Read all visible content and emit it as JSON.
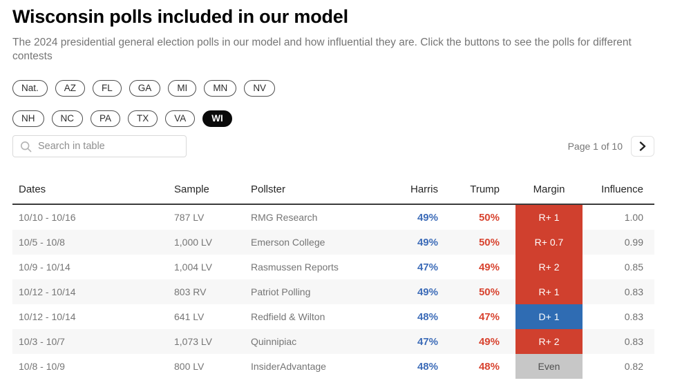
{
  "header": {
    "title": "Wisconsin polls included in our model",
    "subtitle": "The 2024 presidential general election polls in our model and how influential they are. Click the buttons to see the polls for different contests"
  },
  "filters": {
    "row1": [
      {
        "label": "Nat.",
        "active": false
      },
      {
        "label": "AZ",
        "active": false
      },
      {
        "label": "FL",
        "active": false
      },
      {
        "label": "GA",
        "active": false
      },
      {
        "label": "MI",
        "active": false
      },
      {
        "label": "MN",
        "active": false
      },
      {
        "label": "NV",
        "active": false
      }
    ],
    "row2": [
      {
        "label": "NH",
        "active": false
      },
      {
        "label": "NC",
        "active": false
      },
      {
        "label": "PA",
        "active": false
      },
      {
        "label": "TX",
        "active": false
      },
      {
        "label": "VA",
        "active": false
      },
      {
        "label": "WI",
        "active": true
      }
    ]
  },
  "toolbar": {
    "search_placeholder": "Search in table",
    "page_label": "Page 1 of 10",
    "next_icon": "chevron-right-icon",
    "search_icon": "search-icon"
  },
  "table": {
    "columns": [
      "Dates",
      "Sample",
      "Pollster",
      "Harris",
      "Trump",
      "Margin",
      "Influence"
    ],
    "rows": [
      {
        "dates": "10/10 - 10/16",
        "sample": "787 LV",
        "pollster": "RMG Research",
        "harris": "49%",
        "trump": "50%",
        "margin": "R+ 1",
        "margin_type": "rep",
        "influence": "1.00"
      },
      {
        "dates": "10/5 - 10/8",
        "sample": "1,000 LV",
        "pollster": "Emerson College",
        "harris": "49%",
        "trump": "50%",
        "margin": "R+ 0.7",
        "margin_type": "rep",
        "influence": "0.99"
      },
      {
        "dates": "10/9 - 10/14",
        "sample": "1,004 LV",
        "pollster": "Rasmussen Reports",
        "harris": "47%",
        "trump": "49%",
        "margin": "R+ 2",
        "margin_type": "rep",
        "influence": "0.85"
      },
      {
        "dates": "10/12 - 10/14",
        "sample": "803 RV",
        "pollster": "Patriot Polling",
        "harris": "49%",
        "trump": "50%",
        "margin": "R+ 1",
        "margin_type": "rep",
        "influence": "0.83"
      },
      {
        "dates": "10/12 - 10/14",
        "sample": "641 LV",
        "pollster": "Redfield & Wilton",
        "harris": "48%",
        "trump": "47%",
        "margin": "D+ 1",
        "margin_type": "dem",
        "influence": "0.83"
      },
      {
        "dates": "10/3 - 10/7",
        "sample": "1,073 LV",
        "pollster": "Quinnipiac",
        "harris": "47%",
        "trump": "49%",
        "margin": "R+ 2",
        "margin_type": "rep",
        "influence": "0.83"
      },
      {
        "dates": "10/8 - 10/9",
        "sample": "800 LV",
        "pollster": "InsiderAdvantage",
        "harris": "48%",
        "trump": "48%",
        "margin": "Even",
        "margin_type": "even",
        "influence": "0.82"
      }
    ]
  },
  "colors": {
    "rep_margin_bg": "#d0402e",
    "dem_margin_bg": "#2f6cb3",
    "even_margin_bg": "#c7c7c7",
    "harris_text": "#3d6cb8",
    "trump_text": "#d8432f"
  }
}
